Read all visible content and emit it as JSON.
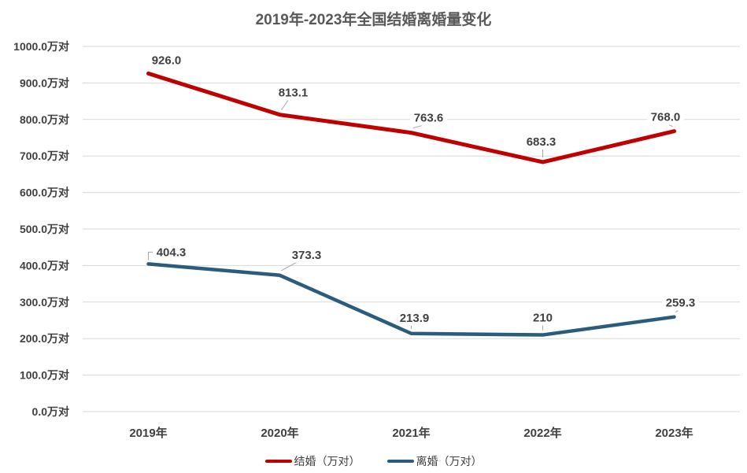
{
  "title": "2019年-2023年全国结婚离婚量变化",
  "chart_data": {
    "type": "line",
    "title": "2019年-2023年全国结婚离婚量变化",
    "categories": [
      "2019年",
      "2020年",
      "2021年",
      "2022年",
      "2023年"
    ],
    "series": [
      {
        "name": "结婚（万对）",
        "color": "#C00000",
        "values": [
          926.0,
          813.1,
          763.6,
          683.3,
          768.0
        ],
        "labels": [
          "926.0",
          "813.1",
          "763.6",
          "683.3",
          "768.0"
        ]
      },
      {
        "name": "离婚（万对）",
        "color": "#2B5C7D",
        "values": [
          404.3,
          373.3,
          213.9,
          210,
          259.3
        ],
        "labels": [
          "404.3",
          "373.3",
          "213.9",
          "210",
          "259.3"
        ]
      }
    ],
    "y_axis": {
      "min": 0,
      "max": 1000,
      "step": 100,
      "tick_labels": [
        "0.0万对",
        "100.0万对",
        "200.0万对",
        "300.0万对",
        "400.0万对",
        "500.0万对",
        "600.0万对",
        "700.0万对",
        "800.0万对",
        "900.0万对",
        "1000.0万对"
      ]
    },
    "grid": true,
    "legend_position": "bottom"
  },
  "colors": {
    "marriage_line": "#C00000",
    "divorce_line": "#2B5C7D",
    "gridline": "#D9D9D9",
    "axis_text": "#404040",
    "title_text": "#595959",
    "leader_line": "#A6A6A6",
    "background": "#FFFFFF"
  }
}
